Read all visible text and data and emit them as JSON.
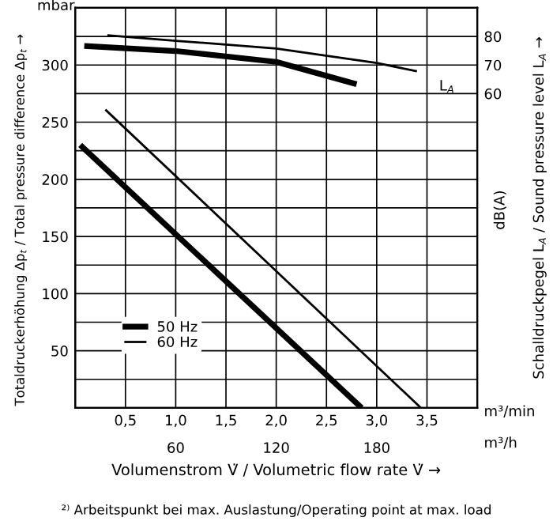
{
  "chart_data": {
    "type": "line",
    "xlabel": "Volumenstrom V̇ / Volumetric flow rate V̇ →",
    "ylabel": "Totaldruckerhöhung Δp$_{t}$ / Total pressure difference Δp$_{t}$ →",
    "y2label": "Schalldruckpegel L$_{A}$ / Sound pressure level L$_{A}$ →",
    "annotations": [
      "mbar",
      "m³/min",
      "m³/h",
      "dB(A)",
      "L$_{A}$",
      "²⁾ Arbeitspunkt bei max. Auslastung/Operating point at max. load"
    ],
    "series": [
      {
        "name": "50 Hz",
        "color": "#000000",
        "x": [
          0.05,
          2.85
        ],
        "values": [
          230,
          0
        ]
      },
      {
        "name": "60 Hz",
        "color": "#000000",
        "x": [
          0.3,
          3.44
        ],
        "values": [
          261,
          0
        ]
      },
      {
        "color": "#000000",
        "axis": "y2",
        "x": [
          0.09,
          1.0,
          2.0,
          2.8
        ],
        "values": [
          76.7,
          74.9,
          71.1,
          63.3
        ]
      },
      {
        "color": "#000000",
        "axis": "y2",
        "x": [
          0.32,
          1.0,
          2.0,
          3.0,
          3.4
        ],
        "values": [
          80.4,
          78.5,
          75.8,
          70.7,
          67.8
        ]
      }
    ],
    "xlim": [
      0,
      4
    ],
    "xticks": [
      {
        "value": 0.5,
        "label": "0,5"
      },
      {
        "value": 1.0,
        "label": "1,0"
      },
      {
        "value": 1.5,
        "label": "1,5"
      },
      {
        "value": 2.0,
        "label": "2,0"
      },
      {
        "value": 2.5,
        "label": "2,5"
      },
      {
        "value": 3.0,
        "label": "3,0"
      },
      {
        "value": 3.5,
        "label": "3,5"
      }
    ],
    "x2lim": [
      0,
      240
    ],
    "x2ticks": [
      60,
      120,
      180
    ],
    "ylim": [
      0,
      350
    ],
    "yticks": [
      {
        "value": 25,
        "label": null
      },
      50,
      {
        "value": 75,
        "label": null
      },
      100,
      {
        "value": 125,
        "label": null
      },
      150,
      {
        "value": 175,
        "label": null
      },
      200,
      {
        "value": 225,
        "label": null
      },
      250,
      {
        "value": 275,
        "label": null
      },
      300,
      {
        "value": 325,
        "label": null
      }
    ],
    "y2lim": [
      -50,
      90
    ],
    "y2ticks": [
      60,
      70,
      80
    ],
    "grid": true,
    "legend": "bottom left",
    "line_style": "solid",
    "marker": "none"
  }
}
